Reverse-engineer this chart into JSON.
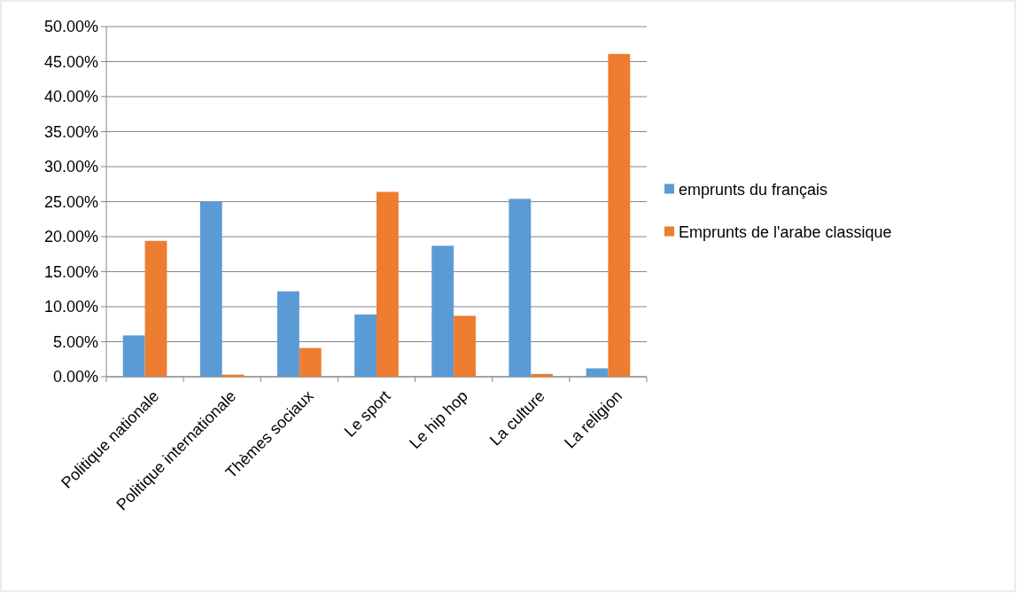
{
  "chart_data": {
    "type": "bar",
    "categories": [
      "Politique nationale",
      "Politique internationale",
      "Thèmes sociaux",
      "Le sport",
      "Le hip hop",
      "La culture",
      "La religion"
    ],
    "series": [
      {
        "name": "emprunts du français",
        "color": "#5b9bd5",
        "values": [
          5.9,
          25.0,
          12.2,
          8.9,
          18.7,
          25.4,
          1.2
        ]
      },
      {
        "name": "Emprunts de l'arabe classique",
        "color": "#ed7d31",
        "values": [
          19.4,
          0.3,
          4.1,
          26.4,
          8.7,
          0.4,
          46.1
        ]
      }
    ],
    "ylim": [
      0,
      50
    ],
    "yticks": [
      {
        "value": 0,
        "label": "0.00%"
      },
      {
        "value": 5,
        "label": "5.00%"
      },
      {
        "value": 10,
        "label": "10.00%"
      },
      {
        "value": 15,
        "label": "15.00%"
      },
      {
        "value": 20,
        "label": "20.00%"
      },
      {
        "value": 25,
        "label": "25.00%"
      },
      {
        "value": 30,
        "label": "30.00%"
      },
      {
        "value": 35,
        "label": "35.00%"
      },
      {
        "value": 40,
        "label": "40.00%"
      },
      {
        "value": 45,
        "label": "45.00%"
      },
      {
        "value": 50,
        "label": "50.00%"
      }
    ],
    "grid": "y",
    "legend": "right"
  }
}
